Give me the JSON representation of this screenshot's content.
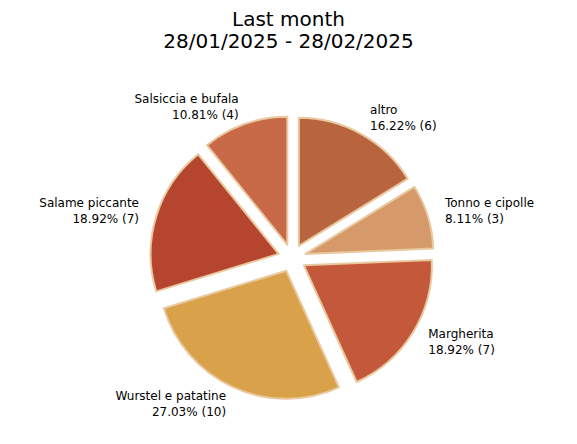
{
  "chart_data": {
    "type": "pie",
    "title": "Last month",
    "subtitle": "28/01/2025 - 28/02/2025",
    "categories": [
      "altro",
      "Tonno e cipolle",
      "Margherita",
      "Wurstel e patatine",
      "Salame piccante",
      "Salsiccia e bufala"
    ],
    "values": [
      6,
      3,
      7,
      10,
      7,
      4
    ],
    "value_labels": [
      "16.22% (6)",
      "8.11% (3)",
      "18.92% (7)",
      "27.03% (10)",
      "18.92% (7)",
      "10.81% (4)"
    ],
    "colors": [
      "#b8643f",
      "#d69a6a",
      "#c4583a",
      "#d9a24a",
      "#b5452e",
      "#c86a48"
    ],
    "data_labels": true
  }
}
